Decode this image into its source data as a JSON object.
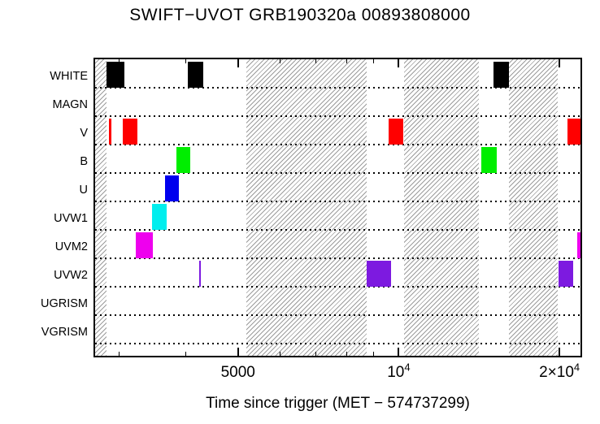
{
  "page": {
    "title": "SWIFT−UVOT GRB190320a 00893808000",
    "xlabel": "Time since trigger (MET − 574737299)"
  },
  "chart_data": {
    "type": "gantt",
    "description": "Observation time intervals per UVOT filter; hatched regions are observing gaps",
    "x_scale": "log",
    "x_range": [
      2700,
      21900
    ],
    "x_ticks": [
      {
        "value": 5000,
        "label": "5000"
      },
      {
        "value": 10000,
        "label": "10",
        "sup": "4"
      },
      {
        "value": 20000,
        "label": "2×10",
        "sup": "4"
      }
    ],
    "x_minor_ticks": [
      3000,
      4000,
      6000,
      7000,
      8000,
      9000
    ],
    "hatch_color": "#9c9c9c",
    "rows": [
      {
        "label": "WHITE",
        "color": "#000000",
        "intervals": [
          [
            2840,
            3060
          ],
          [
            4030,
            4310
          ],
          [
            15070,
            16090
          ]
        ]
      },
      {
        "label": "MAGN",
        "color": "#000000",
        "intervals": []
      },
      {
        "label": "V",
        "color": "#ff0000",
        "intervals": [
          [
            2865,
            2895
          ],
          [
            3040,
            3240
          ],
          [
            9570,
            10210
          ],
          [
            20700,
            21900
          ]
        ]
      },
      {
        "label": "B",
        "color": "#00ee00",
        "intervals": [
          [
            3830,
            4070
          ],
          [
            14300,
            15280
          ]
        ]
      },
      {
        "label": "U",
        "color": "#0000ee",
        "intervals": [
          [
            3650,
            3880
          ]
        ]
      },
      {
        "label": "UVW1",
        "color": "#00eeee",
        "intervals": [
          [
            3450,
            3670
          ]
        ]
      },
      {
        "label": "UVM2",
        "color": "#ee00ee",
        "intervals": [
          [
            3220,
            3460
          ],
          [
            21600,
            21900
          ]
        ]
      },
      {
        "label": "UVW2",
        "color": "#7d1ae0",
        "intervals": [
          [
            4230,
            4265
          ],
          [
            8710,
            9660
          ],
          [
            19900,
            21200
          ]
        ]
      },
      {
        "label": "UGRISM",
        "color": "#000000",
        "intervals": []
      },
      {
        "label": "VGRISM",
        "color": "#000000",
        "intervals": []
      }
    ],
    "hatched_regions": [
      [
        2700,
        2840
      ],
      [
        5180,
        8710
      ],
      [
        10250,
        14150
      ],
      [
        16100,
        19875
      ]
    ]
  }
}
